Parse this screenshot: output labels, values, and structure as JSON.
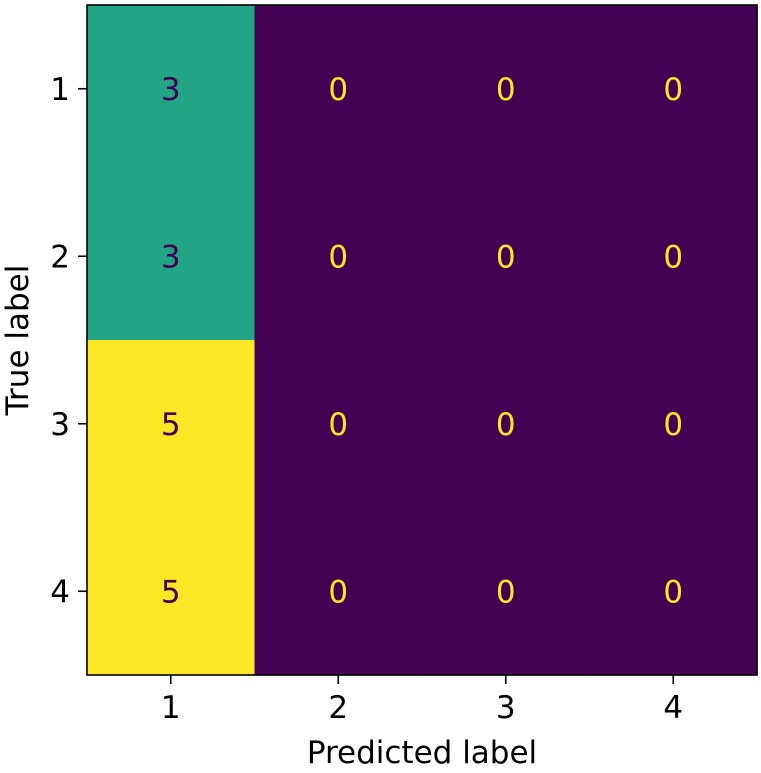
{
  "chart_data": {
    "type": "heatmap",
    "title": "",
    "xlabel": "Predicted label",
    "ylabel": "True label",
    "x_categories": [
      "1",
      "2",
      "3",
      "4"
    ],
    "y_categories": [
      "1",
      "2",
      "3",
      "4"
    ],
    "values": [
      [
        3,
        0,
        0,
        0
      ],
      [
        3,
        0,
        0,
        0
      ],
      [
        5,
        0,
        0,
        0
      ],
      [
        5,
        0,
        0,
        0
      ]
    ],
    "value_range": [
      0,
      5
    ],
    "colormap": "viridis",
    "colorbar": false,
    "grid": false,
    "colors": {
      "low": "#440154",
      "mid": "#21a585",
      "high": "#fde725"
    }
  }
}
